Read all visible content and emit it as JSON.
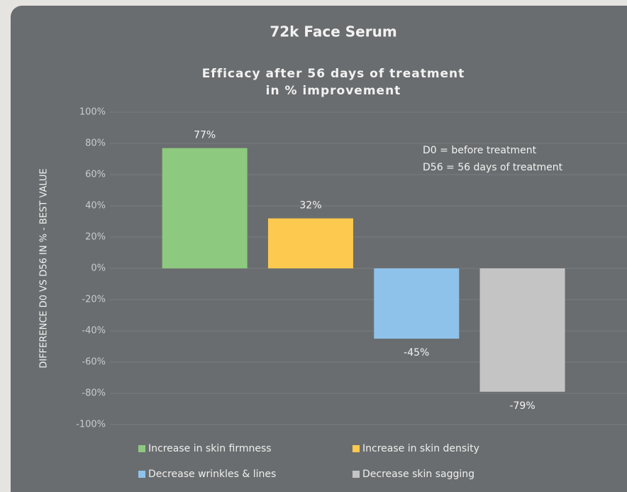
{
  "chart_data": {
    "type": "bar",
    "title": "72k Face Serum",
    "subtitle": [
      "Efficacy after 56 days of treatment",
      "in % improvement"
    ],
    "y_axis_label": "DIFFERENCE D0 VS D56 IN % - BEST VALUE",
    "annotations": [
      "D0 = before treatment",
      "D56 = 56 days of treatment"
    ],
    "categories": [
      null
    ],
    "series": [
      {
        "name": "Increase in skin firmness",
        "color": "#8dc97f",
        "values": [
          77
        ],
        "value_labels": [
          "77%"
        ]
      },
      {
        "name": "Increase in skin density",
        "color": "#fdc94e",
        "values": [
          32
        ],
        "value_labels": [
          "32%"
        ]
      },
      {
        "name": "Decrease wrinkles &  lines",
        "color": "#8ec2ea",
        "values": [
          -45
        ],
        "value_labels": [
          "-45%"
        ]
      },
      {
        "name": "Decrease skin sagging",
        "color": "#c4c4c4",
        "values": [
          -79
        ],
        "value_labels": [
          "-79%"
        ]
      }
    ],
    "ylim": [
      -100,
      100
    ],
    "yticks": [
      {
        "value": -100,
        "label": "-100%"
      },
      {
        "value": -80,
        "label": "-80%"
      },
      {
        "value": -60,
        "label": "-60%"
      },
      {
        "value": -40,
        "label": "-40%"
      },
      {
        "value": -20,
        "label": "-20%"
      },
      {
        "value": 0,
        "label": "0%"
      },
      {
        "value": 20,
        "label": "20%"
      },
      {
        "value": 40,
        "label": "40%"
      },
      {
        "value": 60,
        "label": "60%"
      },
      {
        "value": 80,
        "label": "80%"
      },
      {
        "value": 100,
        "label": "100%"
      }
    ],
    "grid": true,
    "legend": "bottom"
  }
}
